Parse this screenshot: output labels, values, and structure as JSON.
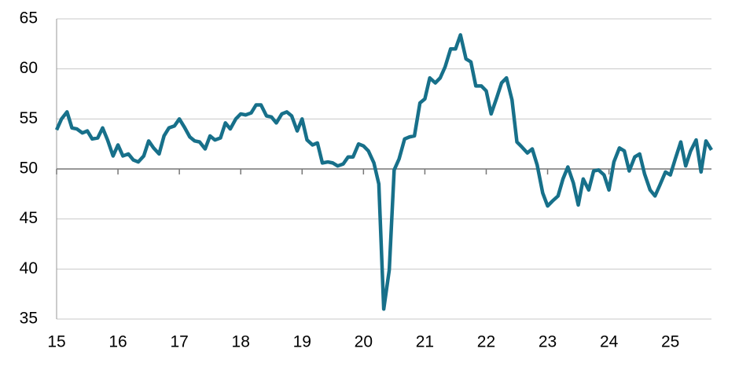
{
  "chart_data": {
    "type": "line",
    "x": [
      15,
      15.08,
      15.17,
      15.25,
      15.33,
      15.42,
      15.5,
      15.58,
      15.67,
      15.75,
      15.83,
      15.92,
      16,
      16.08,
      16.17,
      16.25,
      16.33,
      16.42,
      16.5,
      16.58,
      16.67,
      16.75,
      16.83,
      16.92,
      17,
      17.08,
      17.17,
      17.25,
      17.33,
      17.42,
      17.5,
      17.58,
      17.67,
      17.75,
      17.83,
      17.92,
      18,
      18.08,
      18.17,
      18.25,
      18.33,
      18.42,
      18.5,
      18.58,
      18.67,
      18.75,
      18.83,
      18.92,
      19,
      19.08,
      19.17,
      19.25,
      19.33,
      19.42,
      19.5,
      19.58,
      19.67,
      19.75,
      19.83,
      19.92,
      20,
      20.08,
      20.17,
      20.25,
      20.33,
      20.42,
      20.5,
      20.58,
      20.67,
      20.75,
      20.83,
      20.92,
      21,
      21.08,
      21.17,
      21.25,
      21.33,
      21.42,
      21.5,
      21.58,
      21.67,
      21.75,
      21.83,
      21.92,
      22,
      22.08,
      22.17,
      22.25,
      22.33,
      22.42,
      22.5,
      22.58,
      22.67,
      22.75,
      22.83,
      22.92,
      23,
      23.08,
      23.17,
      23.25,
      23.33,
      23.42,
      23.5,
      23.58,
      23.67,
      23.75,
      23.83,
      23.92,
      24,
      24.08,
      24.17,
      24.25,
      24.33,
      24.42,
      24.5,
      24.58,
      24.67,
      24.75,
      24.83,
      24.92,
      25,
      25.08,
      25.17,
      25.25,
      25.33,
      25.42,
      25.5,
      25.58,
      25.67
    ],
    "series": [
      {
        "color": "#17708a",
        "values": [
          53.9,
          55.0,
          55.7,
          54.1,
          54.0,
          53.6,
          53.8,
          53.0,
          53.1,
          54.1,
          52.9,
          51.3,
          52.4,
          51.3,
          51.5,
          50.9,
          50.7,
          51.3,
          52.8,
          52.1,
          51.5,
          53.3,
          54.1,
          54.3,
          55.0,
          54.2,
          53.2,
          52.8,
          52.7,
          52.0,
          53.3,
          52.9,
          53.1,
          54.6,
          54.0,
          55.0,
          55.5,
          55.4,
          55.6,
          56.4,
          56.4,
          55.3,
          55.2,
          54.6,
          55.5,
          55.7,
          55.3,
          53.8,
          55.0,
          52.9,
          52.4,
          52.6,
          50.6,
          50.7,
          50.6,
          50.3,
          50.5,
          51.2,
          51.2,
          52.5,
          52.3,
          51.8,
          50.6,
          48.5,
          36.0,
          39.9,
          49.9,
          51.0,
          53.0,
          53.2,
          53.3,
          56.6,
          57.0,
          59.1,
          58.6,
          59.1,
          60.2,
          62.0,
          62.0,
          63.4,
          61.0,
          60.7,
          58.3,
          58.3,
          57.8,
          55.5,
          57.1,
          58.6,
          59.1,
          56.9,
          52.7,
          52.2,
          51.6,
          52.0,
          50.4,
          47.6,
          46.3,
          46.8,
          47.3,
          49.0,
          50.2,
          48.6,
          46.4,
          49.0,
          47.9,
          49.8,
          49.9,
          49.4,
          47.9,
          50.7,
          52.1,
          51.8,
          49.8,
          51.2,
          51.5,
          49.5,
          47.9,
          47.3,
          48.4,
          49.7,
          49.4,
          51.0,
          52.7,
          50.3,
          51.8,
          52.9,
          49.7,
          52.8,
          51.9
        ]
      }
    ],
    "xlim": [
      15,
      25.67
    ],
    "xticks": [
      15,
      16,
      17,
      18,
      19,
      20,
      21,
      22,
      23,
      24,
      25
    ],
    "ylim": [
      35,
      65
    ],
    "yticks": [
      35,
      40,
      45,
      50,
      55,
      60,
      65
    ],
    "grid": true,
    "reference_line": 50
  }
}
